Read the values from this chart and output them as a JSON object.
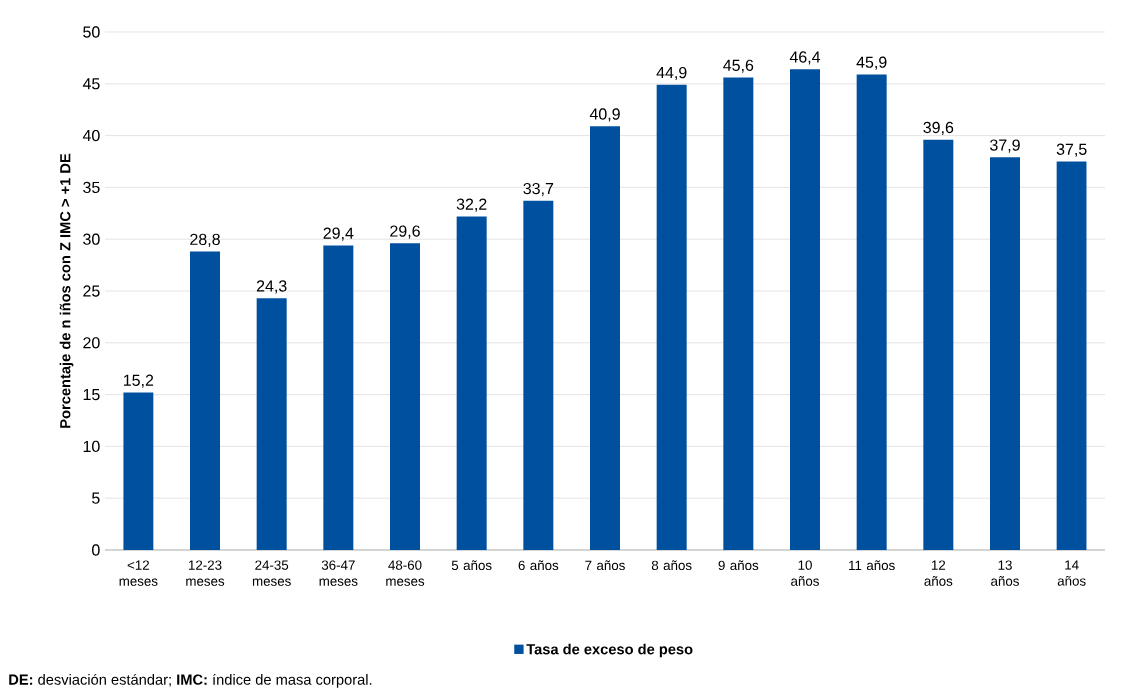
{
  "chart_data": {
    "type": "bar",
    "ylabel": "Porcentaje de n iños con Z IMC > +1 DE",
    "categories": [
      "<12 meses",
      "12-23 meses",
      "24-35 meses",
      "36-47 meses",
      "48-60 meses",
      "5 años",
      "6 años",
      "7 años",
      "8 años",
      "9 años",
      "10 años",
      "11 años",
      "12 años",
      "13 años",
      "14 años"
    ],
    "series": [
      {
        "name": "Tasa de exceso de peso",
        "color": "#0050a0",
        "values": [
          15.2,
          28.8,
          24.3,
          29.4,
          29.6,
          32.2,
          33.7,
          40.9,
          44.9,
          45.6,
          46.4,
          45.9,
          39.6,
          37.9,
          37.5
        ],
        "value_labels": [
          "15,2",
          "28,8",
          "24,3",
          "29,4",
          "29,6",
          "32,2",
          "33,7",
          "40,9",
          "44,9",
          "45,6",
          "46,4",
          "45,9",
          "39,6",
          "37,9",
          "37,5"
        ]
      }
    ],
    "ylim": [
      0,
      50
    ],
    "yticks": [
      0,
      5,
      10,
      15,
      20,
      25,
      30,
      35,
      40,
      45,
      50
    ],
    "grid": "y",
    "legend": "bottom",
    "annotations": [
      "**DE:** desviación estándar; **IMC:** índice de masa corporal."
    ]
  }
}
